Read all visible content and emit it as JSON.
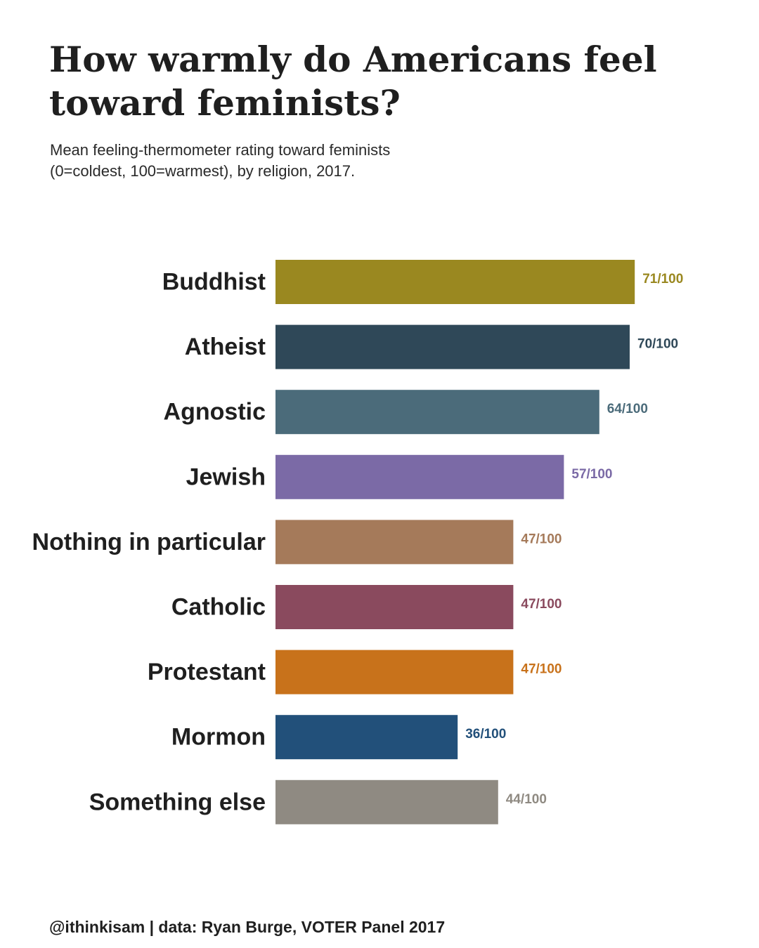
{
  "title": "How warmly do Americans feel toward feminists?",
  "subtitle_lines": [
    "Mean feeling-thermometer rating toward feminists",
    "(0=coldest, 100=warmest), by religion, 2017."
  ],
  "caption": "@ithinkisam | data: Ryan Burge, VOTER Panel 2017",
  "chart_data": {
    "type": "bar",
    "orientation": "horizontal",
    "categories": [
      "Buddhist",
      "Atheist",
      "Agnostic",
      "Jewish",
      "Nothing in particular",
      "Catholic",
      "Protestant",
      "Mormon",
      "Something else"
    ],
    "values": [
      71,
      70,
      64,
      57,
      47,
      47,
      47,
      36,
      44
    ],
    "value_labels": [
      "71/100",
      "70/100",
      "64/100",
      "57/100",
      "47/100",
      "47/100",
      "47/100",
      "36/100",
      "44/100"
    ],
    "colors": [
      "#9a8820",
      "#2f4858",
      "#4b6b7a",
      "#7b6aa6",
      "#a57a5a",
      "#8a4a5e",
      "#c8721b",
      "#22507a",
      "#8f8a82"
    ],
    "xlim": [
      0,
      100
    ],
    "grid": false,
    "axes_visible": false
  }
}
